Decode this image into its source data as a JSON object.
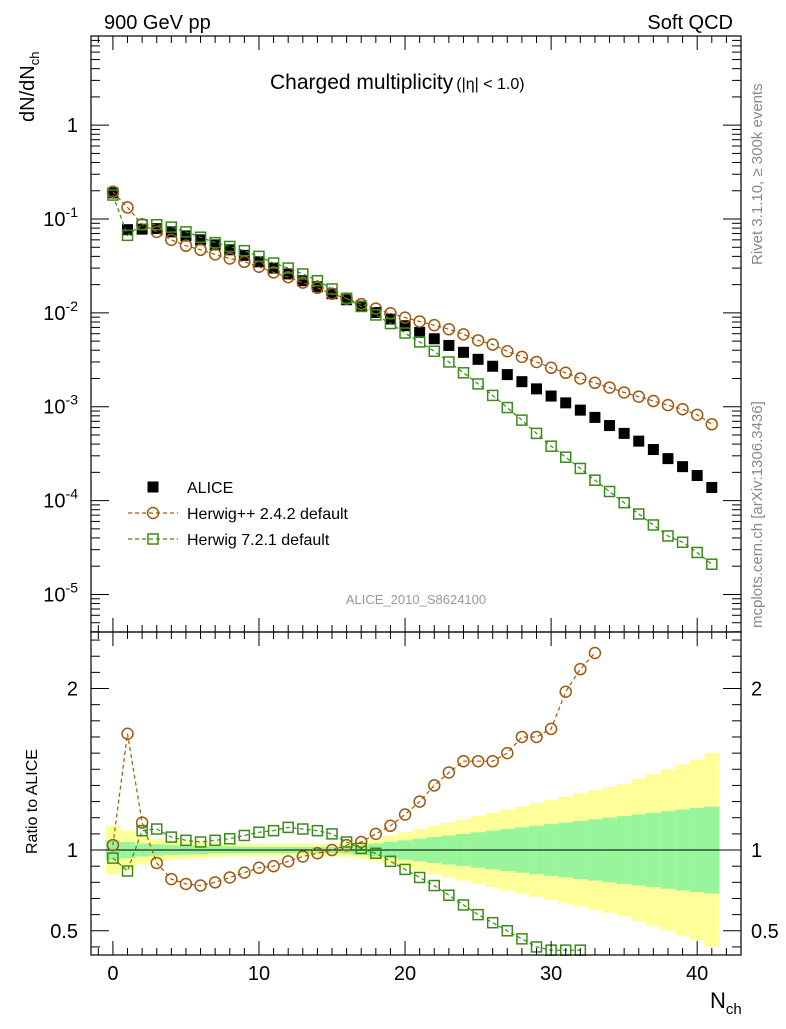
{
  "header": {
    "left": "900 GeV pp",
    "right": "Soft QCD"
  },
  "side_labels": {
    "rivet": "Rivet 3.1.10, ≥ 300k events",
    "source": "mcplots.cern.ch [arXiv:1306.3436]"
  },
  "chart_data": {
    "type": "scatter",
    "title": "Charged multiplicity",
    "title_cut": "(|η| < 1.0)",
    "analysis_id": "ALICE_2010_S8624100",
    "xlabel": "N",
    "xlabel_sub": "ch",
    "ylabel": "dN/dN",
    "ylabel_sub": "ch",
    "ratio_ylabel": "Ratio to ALICE",
    "xlim": [
      -1.5,
      43
    ],
    "ylim_log": [
      -5.4,
      0.95
    ],
    "ratio_ylim": [
      0.35,
      2.35
    ],
    "x_ticks": [
      0,
      10,
      20,
      30,
      40
    ],
    "y_ticks": [
      {
        "base": "1",
        "exp": ""
      },
      {
        "base": "10",
        "exp": "-1"
      },
      {
        "base": "10",
        "exp": "-2"
      },
      {
        "base": "10",
        "exp": "-3"
      },
      {
        "base": "10",
        "exp": "-4"
      },
      {
        "base": "10",
        "exp": "-5"
      }
    ],
    "ratio_ticks": [
      "0.5",
      "1",
      "2"
    ],
    "legend_position": "bottom-left",
    "x": [
      0,
      1,
      2,
      3,
      4,
      5,
      6,
      7,
      8,
      9,
      10,
      11,
      12,
      13,
      14,
      15,
      16,
      17,
      18,
      19,
      20,
      21,
      22,
      23,
      24,
      25,
      26,
      27,
      28,
      29,
      30,
      31,
      32,
      33,
      34,
      35,
      36,
      37,
      38,
      39,
      40,
      41
    ],
    "series": [
      {
        "name": "ALICE",
        "marker": "filled-square",
        "color": "#000000",
        "values": [
          0.19,
          0.077,
          0.078,
          0.079,
          0.073,
          0.066,
          0.06,
          0.053,
          0.047,
          0.041,
          0.035,
          0.03,
          0.026,
          0.022,
          0.019,
          0.016,
          0.0138,
          0.0118,
          0.0101,
          0.0086,
          0.0073,
          0.0062,
          0.0053,
          0.0045,
          0.0038,
          0.0032,
          0.0027,
          0.0022,
          0.00185,
          0.00155,
          0.0013,
          0.0011,
          0.00092,
          0.00077,
          0.00063,
          0.00052,
          0.00043,
          0.00035,
          0.00028,
          0.00023,
          0.000185,
          0.000138
        ]
      },
      {
        "name": "Herwig++ 2.4.2 default",
        "marker": "open-circle",
        "color": "#a0580f",
        "values": [
          0.195,
          0.133,
          0.088,
          0.073,
          0.06,
          0.052,
          0.047,
          0.042,
          0.038,
          0.035,
          0.031,
          0.027,
          0.024,
          0.021,
          0.0185,
          0.016,
          0.0142,
          0.0124,
          0.0111,
          0.0099,
          0.0089,
          0.0081,
          0.0074,
          0.0067,
          0.0059,
          0.0051,
          0.0046,
          0.0039,
          0.0034,
          0.003,
          0.0026,
          0.0023,
          0.002,
          0.0018,
          0.0016,
          0.00142,
          0.00128,
          0.00115,
          0.00104,
          0.00094,
          0.00082,
          0.00065
        ]
      },
      {
        "name": "Herwig 7.2.1 default",
        "marker": "open-square",
        "color": "#3a8a1a",
        "values": [
          0.18,
          0.067,
          0.087,
          0.087,
          0.082,
          0.073,
          0.064,
          0.056,
          0.051,
          0.046,
          0.04,
          0.034,
          0.03,
          0.026,
          0.022,
          0.018,
          0.0143,
          0.0117,
          0.0095,
          0.0077,
          0.0061,
          0.0049,
          0.0039,
          0.003,
          0.0023,
          0.00175,
          0.00132,
          0.00098,
          0.00072,
          0.00052,
          0.00038,
          0.00029,
          0.00022,
          0.000165,
          0.000125,
          9.5e-05,
          7.2e-05,
          5.5e-05,
          4.2e-05,
          3.6e-05,
          2.8e-05,
          2.1e-05
        ]
      }
    ],
    "ratios": [
      {
        "name": "Herwig++ 2.4.2 default",
        "color": "#a0580f",
        "marker": "open-circle",
        "x": [
          0,
          1,
          2,
          3,
          4,
          5,
          6,
          7,
          8,
          9,
          10,
          11,
          12,
          13,
          14,
          15,
          16,
          17,
          18,
          19,
          20,
          21,
          22,
          23,
          24,
          25,
          26,
          27,
          28,
          29,
          30,
          31,
          32,
          33
        ],
        "values": [
          1.03,
          1.72,
          1.17,
          0.92,
          0.82,
          0.79,
          0.78,
          0.8,
          0.83,
          0.86,
          0.89,
          0.9,
          0.93,
          0.96,
          0.98,
          1.0,
          1.03,
          1.05,
          1.1,
          1.15,
          1.22,
          1.3,
          1.4,
          1.48,
          1.55,
          1.55,
          1.55,
          1.6,
          1.7,
          1.7,
          1.75,
          1.98,
          2.12,
          2.22
        ]
      },
      {
        "name": "Herwig 7.2.1 default",
        "color": "#3a8a1a",
        "marker": "open-square",
        "x": [
          0,
          1,
          2,
          3,
          4,
          5,
          6,
          7,
          8,
          9,
          10,
          11,
          12,
          13,
          14,
          15,
          16,
          17,
          18,
          19,
          20,
          21,
          22,
          23,
          24,
          25,
          26,
          27,
          28,
          29,
          30,
          31,
          32
        ],
        "values": [
          0.95,
          0.87,
          1.12,
          1.13,
          1.08,
          1.06,
          1.05,
          1.06,
          1.07,
          1.09,
          1.11,
          1.12,
          1.14,
          1.13,
          1.12,
          1.1,
          1.05,
          1.01,
          0.98,
          0.93,
          0.88,
          0.83,
          0.78,
          0.72,
          0.66,
          0.6,
          0.55,
          0.5,
          0.45,
          0.4,
          0.38,
          0.38,
          0.38
        ]
      }
    ],
    "bands": {
      "inner_color": "#98f59b",
      "outer_color": "#ffff99",
      "inner_half_width": [
        0.06,
        0.05,
        0.04,
        0.035,
        0.03,
        0.028,
        0.025,
        0.022,
        0.022,
        0.02,
        0.02,
        0.02,
        0.02,
        0.02,
        0.02,
        0.02,
        0.022,
        0.03,
        0.04,
        0.05,
        0.06,
        0.07,
        0.08,
        0.09,
        0.1,
        0.11,
        0.12,
        0.13,
        0.14,
        0.15,
        0.16,
        0.17,
        0.18,
        0.19,
        0.2,
        0.21,
        0.22,
        0.23,
        0.24,
        0.25,
        0.26,
        0.27
      ],
      "outer_half_width": [
        0.15,
        0.12,
        0.09,
        0.07,
        0.06,
        0.055,
        0.05,
        0.045,
        0.04,
        0.04,
        0.04,
        0.04,
        0.04,
        0.04,
        0.04,
        0.04,
        0.045,
        0.055,
        0.07,
        0.09,
        0.11,
        0.13,
        0.15,
        0.17,
        0.19,
        0.21,
        0.23,
        0.25,
        0.27,
        0.29,
        0.31,
        0.33,
        0.35,
        0.37,
        0.39,
        0.41,
        0.44,
        0.47,
        0.5,
        0.53,
        0.56,
        0.6
      ]
    }
  }
}
